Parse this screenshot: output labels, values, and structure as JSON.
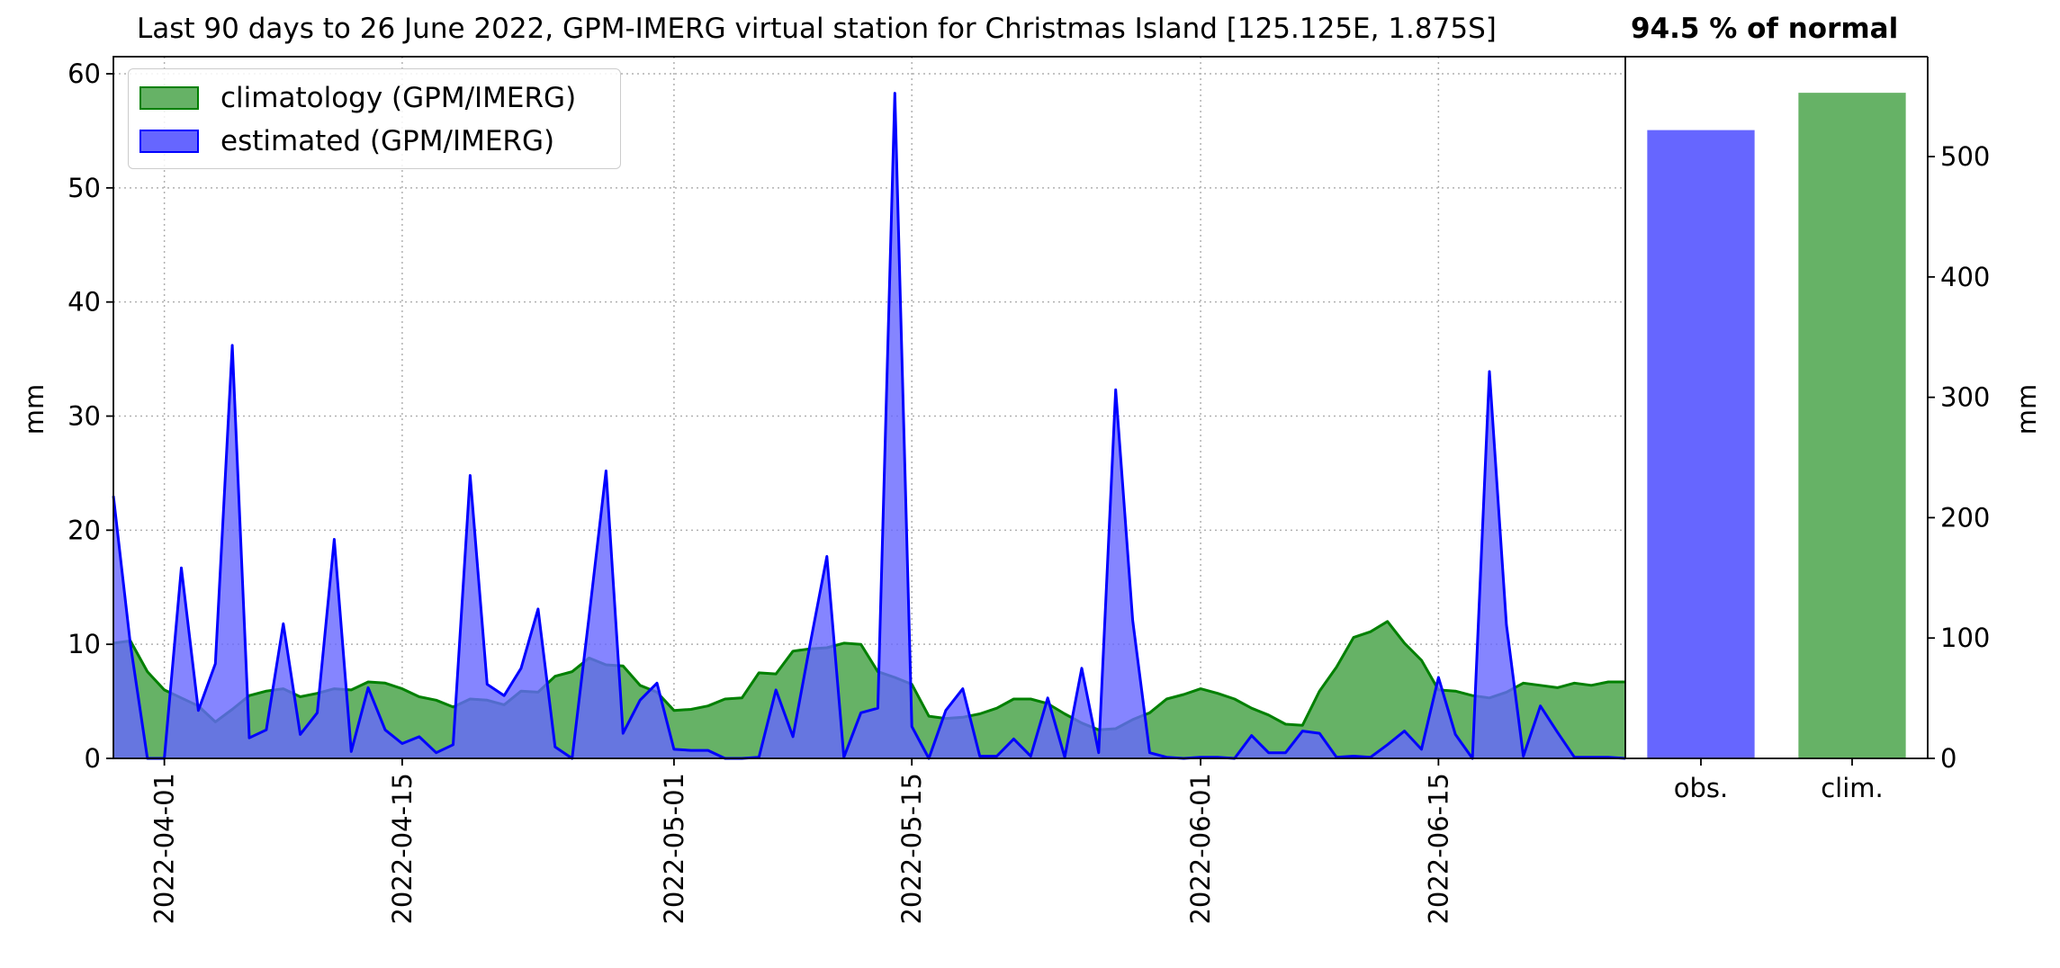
{
  "title": "Last 90 days to 26 June 2022, GPM-IMERG virtual station for Christmas Island [125.125E, 1.875S]",
  "percent_of_normal": "94.5 % of normal",
  "colors": {
    "climatology_fill": "#66b266",
    "climatology_line": "#008000",
    "estimated_fill": "#6666ff",
    "estimated_line": "#0000ff",
    "grid": "#b0b0b0"
  },
  "chart_data": [
    {
      "type": "area",
      "ylabel": "mm",
      "ylim": [
        0,
        61.5
      ],
      "yticks": [
        0,
        10,
        20,
        30,
        40,
        50,
        60
      ],
      "xlim": [
        "2022-03-29",
        "2022-06-26"
      ],
      "xticks": [
        "2022-04-01",
        "2022-04-15",
        "2022-05-01",
        "2022-05-15",
        "2022-06-01",
        "2022-06-15"
      ],
      "grid": true,
      "legend_position": "top-left",
      "series": [
        {
          "name": "climatology (GPM/IMERG)",
          "start": "2022-03-29",
          "values": [
            10.1,
            10.3,
            7.6,
            6.0,
            5.3,
            4.6,
            3.2,
            4.3,
            5.5,
            5.9,
            6.1,
            5.4,
            5.7,
            6.1,
            6.0,
            6.7,
            6.6,
            6.1,
            5.4,
            5.1,
            4.5,
            5.2,
            5.1,
            4.7,
            5.9,
            5.8,
            7.2,
            7.6,
            8.8,
            8.2,
            8.1,
            6.4,
            5.8,
            4.2,
            4.3,
            4.6,
            5.2,
            5.3,
            7.5,
            7.4,
            9.4,
            9.6,
            9.7,
            10.1,
            10.0,
            7.6,
            7.1,
            6.5,
            3.7,
            3.5,
            3.6,
            3.9,
            4.4,
            5.2,
            5.2,
            4.8,
            3.9,
            3.1,
            2.5,
            2.6,
            3.4,
            4.0,
            5.2,
            5.6,
            6.1,
            5.7,
            5.2,
            4.4,
            3.8,
            3.0,
            2.9,
            5.9,
            8.0,
            10.6,
            11.1,
            12.0,
            10.1,
            8.6,
            6.0,
            5.9,
            5.5,
            5.3,
            5.8,
            6.6,
            6.4,
            6.2,
            6.6,
            6.4,
            6.7,
            6.7
          ]
        },
        {
          "name": "estimated (GPM/IMERG)",
          "start": "2022-03-29",
          "values": [
            23.0,
            10.0,
            0.0,
            0.0,
            16.7,
            4.2,
            8.3,
            36.2,
            1.8,
            2.5,
            11.8,
            2.1,
            4.0,
            19.2,
            0.6,
            6.2,
            2.5,
            1.3,
            1.9,
            0.5,
            1.2,
            24.8,
            6.5,
            5.5,
            7.9,
            13.1,
            1.0,
            0.0,
            12.4,
            25.2,
            2.2,
            5.1,
            6.6,
            0.8,
            0.7,
            0.7,
            0.0,
            0.0,
            0.1,
            6.0,
            1.9,
            9.9,
            17.7,
            0.1,
            4.0,
            4.4,
            58.3,
            2.8,
            0.0,
            4.2,
            6.1,
            0.2,
            0.2,
            1.7,
            0.2,
            5.3,
            0.1,
            7.9,
            0.5,
            32.3,
            12.1,
            0.5,
            0.1,
            0.0,
            0.1,
            0.1,
            0.0,
            2.0,
            0.5,
            0.5,
            2.4,
            2.2,
            0.1,
            0.2,
            0.1,
            1.2,
            2.4,
            0.8,
            7.1,
            2.1,
            0.0,
            33.9,
            11.7,
            0.2,
            4.6,
            2.3,
            0.1,
            0.1,
            0.1,
            0.0
          ]
        }
      ]
    },
    {
      "type": "bar",
      "ylabel": "mm",
      "ylim": [
        0,
        583
      ],
      "yticks": [
        0,
        100,
        200,
        300,
        400,
        500
      ],
      "categories": [
        "obs.",
        "clim."
      ],
      "values": [
        522,
        553
      ],
      "colors": [
        "#6666ff",
        "#66b266"
      ]
    }
  ]
}
